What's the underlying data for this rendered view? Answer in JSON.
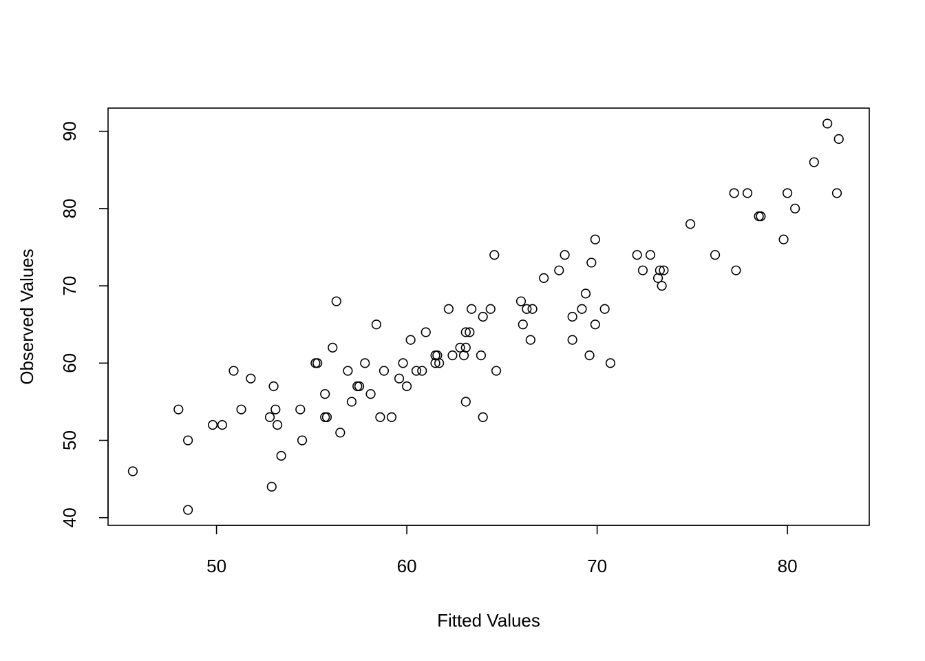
{
  "chart_data": {
    "type": "scatter",
    "title": "",
    "xlabel": "Fitted Values",
    "ylabel": "Observed Values",
    "xlim": [
      44.3,
      84.3
    ],
    "ylim": [
      39,
      93
    ],
    "x_ticks": [
      50,
      60,
      70,
      80
    ],
    "y_ticks": [
      40,
      50,
      60,
      70,
      80,
      90
    ],
    "grid": false,
    "legend": "none",
    "marker": "open-circle",
    "marker_color": "#000000",
    "points": [
      [
        45.6,
        46
      ],
      [
        48.0,
        54
      ],
      [
        48.5,
        50
      ],
      [
        48.5,
        41
      ],
      [
        49.8,
        52
      ],
      [
        50.3,
        52
      ],
      [
        50.9,
        59
      ],
      [
        51.3,
        54
      ],
      [
        51.8,
        58
      ],
      [
        52.8,
        53
      ],
      [
        52.9,
        44
      ],
      [
        53.0,
        57
      ],
      [
        53.1,
        54
      ],
      [
        53.2,
        52
      ],
      [
        53.4,
        48
      ],
      [
        54.4,
        54
      ],
      [
        54.5,
        50
      ],
      [
        55.2,
        60
      ],
      [
        55.3,
        60
      ],
      [
        55.7,
        56
      ],
      [
        55.7,
        53
      ],
      [
        55.8,
        53
      ],
      [
        56.1,
        62
      ],
      [
        56.3,
        68
      ],
      [
        56.5,
        51
      ],
      [
        56.9,
        59
      ],
      [
        57.1,
        55
      ],
      [
        57.4,
        57
      ],
      [
        57.5,
        57
      ],
      [
        57.8,
        60
      ],
      [
        58.1,
        56
      ],
      [
        58.4,
        65
      ],
      [
        58.6,
        53
      ],
      [
        58.8,
        59
      ],
      [
        59.2,
        53
      ],
      [
        59.6,
        58
      ],
      [
        59.8,
        60
      ],
      [
        60.0,
        57
      ],
      [
        60.2,
        63
      ],
      [
        60.5,
        59
      ],
      [
        60.8,
        59
      ],
      [
        61.0,
        64
      ],
      [
        61.5,
        61
      ],
      [
        61.5,
        60
      ],
      [
        61.6,
        61
      ],
      [
        61.7,
        60
      ],
      [
        62.2,
        67
      ],
      [
        62.4,
        61
      ],
      [
        62.8,
        62
      ],
      [
        63.0,
        61
      ],
      [
        63.1,
        62
      ],
      [
        63.1,
        64
      ],
      [
        63.1,
        55
      ],
      [
        63.3,
        64
      ],
      [
        63.4,
        67
      ],
      [
        63.9,
        61
      ],
      [
        64.0,
        66
      ],
      [
        64.0,
        53
      ],
      [
        64.4,
        67
      ],
      [
        64.6,
        74
      ],
      [
        64.7,
        59
      ],
      [
        66.0,
        68
      ],
      [
        66.1,
        65
      ],
      [
        66.3,
        67
      ],
      [
        66.5,
        63
      ],
      [
        66.6,
        67
      ],
      [
        67.2,
        71
      ],
      [
        68.0,
        72
      ],
      [
        68.3,
        74
      ],
      [
        68.7,
        66
      ],
      [
        68.7,
        63
      ],
      [
        69.2,
        67
      ],
      [
        69.4,
        69
      ],
      [
        69.6,
        61
      ],
      [
        69.7,
        73
      ],
      [
        69.9,
        76
      ],
      [
        69.9,
        65
      ],
      [
        70.4,
        67
      ],
      [
        70.7,
        60
      ],
      [
        72.1,
        74
      ],
      [
        72.4,
        72
      ],
      [
        72.8,
        74
      ],
      [
        73.2,
        71
      ],
      [
        73.3,
        72
      ],
      [
        73.4,
        70
      ],
      [
        73.5,
        72
      ],
      [
        74.9,
        78
      ],
      [
        76.2,
        74
      ],
      [
        77.2,
        82
      ],
      [
        77.3,
        72
      ],
      [
        77.9,
        82
      ],
      [
        78.5,
        79
      ],
      [
        78.6,
        79
      ],
      [
        79.8,
        76
      ],
      [
        80.0,
        82
      ],
      [
        80.4,
        80
      ],
      [
        81.4,
        86
      ],
      [
        82.1,
        91
      ],
      [
        82.6,
        82
      ],
      [
        82.7,
        89
      ]
    ]
  }
}
